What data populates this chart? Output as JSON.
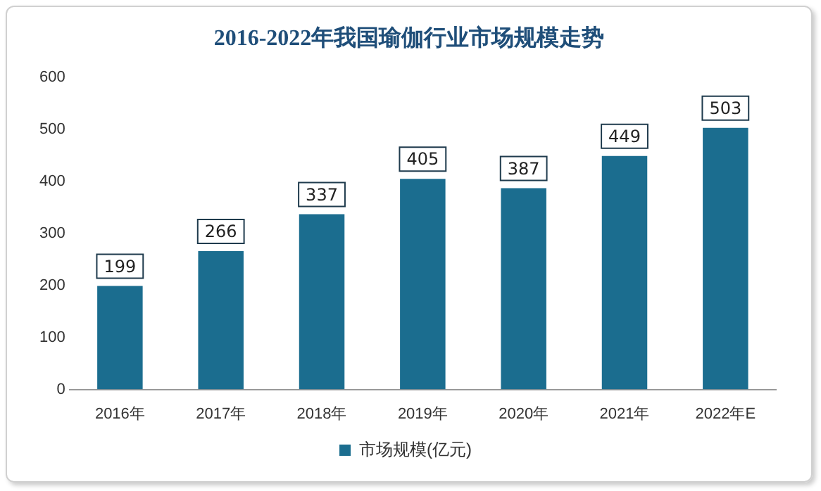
{
  "chart_data": {
    "type": "bar",
    "title": "2016-2022年我国瑜伽行业市场规模走势",
    "categories": [
      "2016年",
      "2017年",
      "2018年",
      "2019年",
      "2020年",
      "2021年",
      "2022年E"
    ],
    "series": [
      {
        "name": "市场规模(亿元)",
        "color": "#1b6d8f",
        "values": [
          199,
          266,
          337,
          405,
          387,
          449,
          503
        ]
      }
    ],
    "ylim": [
      0,
      600
    ],
    "yticks": [
      0,
      100,
      200,
      300,
      400,
      500,
      600
    ],
    "grid": false,
    "legend": "bottom",
    "data_labels": true
  }
}
